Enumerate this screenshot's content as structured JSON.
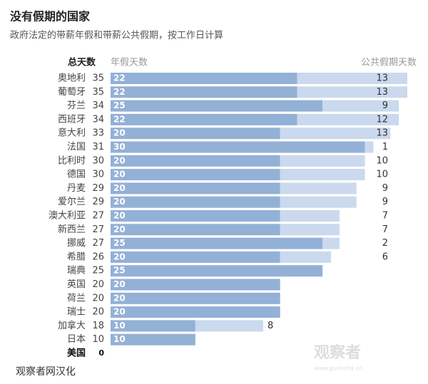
{
  "chart_data": {
    "type": "bar",
    "orientation": "horizontal",
    "stacked": true,
    "title": "没有假期的国家",
    "subtitle": "政府法定的带薪年假和带薪公共假期，按工作日计算",
    "totals_label": "总天数",
    "categories": [
      "奥地利",
      "葡萄牙",
      "芬兰",
      "西班牙",
      "意大利",
      "法国",
      "比利时",
      "德国",
      "丹麦",
      "爱尔兰",
      "澳大利亚",
      "新西兰",
      "挪威",
      "希腊",
      "瑞典",
      "英国",
      "荷兰",
      "瑞士",
      "加拿大",
      "日本",
      "美国"
    ],
    "totals": [
      35,
      35,
      34,
      34,
      33,
      31,
      30,
      30,
      29,
      29,
      27,
      27,
      27,
      26,
      25,
      20,
      20,
      20,
      18,
      10,
      0
    ],
    "series": [
      {
        "name": "年假天数",
        "color": "#93b1d6",
        "values": [
          22,
          22,
          25,
          22,
          20,
          30,
          20,
          20,
          20,
          20,
          20,
          20,
          25,
          20,
          25,
          20,
          20,
          20,
          10,
          10,
          null
        ]
      },
      {
        "name": "公共假期天数",
        "color": "#cad9ee",
        "values": [
          13,
          13,
          9,
          12,
          13,
          1,
          10,
          10,
          9,
          9,
          7,
          7,
          2,
          6,
          null,
          null,
          null,
          null,
          8,
          null,
          null
        ]
      }
    ],
    "source": "观察者网汉化",
    "watermark": [
      "观察者",
      "www.guancha.cn"
    ]
  }
}
